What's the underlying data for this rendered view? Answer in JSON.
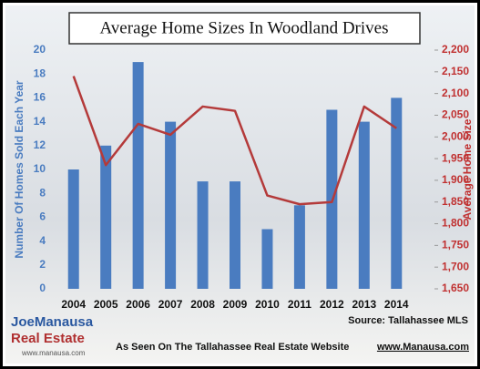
{
  "chart_data": {
    "type": "bar-line",
    "title": "Average Home Sizes In Woodland Drives",
    "categories": [
      "2004",
      "2005",
      "2006",
      "2007",
      "2008",
      "2009",
      "2010",
      "2011",
      "2012",
      "2013",
      "2014"
    ],
    "series": [
      {
        "name": "Number Of Homes Sold Each Year",
        "type": "bar",
        "color": "#4a7cc0",
        "values": [
          10,
          12,
          19,
          14,
          9,
          9,
          5,
          7,
          15,
          14,
          16
        ]
      },
      {
        "name": "Average Home Size",
        "type": "line",
        "axis": "y2",
        "color": "#b43a3a",
        "values": [
          2140,
          1935,
          2030,
          2005,
          2070,
          2060,
          1865,
          1845,
          1850,
          2070,
          2020
        ]
      }
    ],
    "ylim": [
      0,
      20
    ],
    "yticks": [
      0,
      2,
      4,
      6,
      8,
      10,
      12,
      14,
      16,
      18,
      20
    ],
    "y2lim": [
      1650,
      2200
    ],
    "y2ticks": [
      {
        "value": 1650,
        "label": "1,650"
      },
      {
        "value": 1700,
        "label": "1,700"
      },
      {
        "value": 1750,
        "label": "1,750"
      },
      {
        "value": 1800,
        "label": "1,800"
      },
      {
        "value": 1850,
        "label": "1,850"
      },
      {
        "value": 1900,
        "label": "1,900"
      },
      {
        "value": 1950,
        "label": "1,950"
      },
      {
        "value": 2000,
        "label": "2,000"
      },
      {
        "value": 2050,
        "label": "2,050"
      },
      {
        "value": 2100,
        "label": "2,100"
      },
      {
        "value": 2150,
        "label": "2,150"
      },
      {
        "value": 2200,
        "label": "2,200"
      }
    ],
    "source": "Source: Tallahassee MLS",
    "footer_text": "As Seen On The Tallahassee Real Estate Website",
    "footer_link": "www.Manausa.com",
    "logo": [
      "JoeManausa",
      "Real Estate",
      "www.manausa.com"
    ]
  }
}
